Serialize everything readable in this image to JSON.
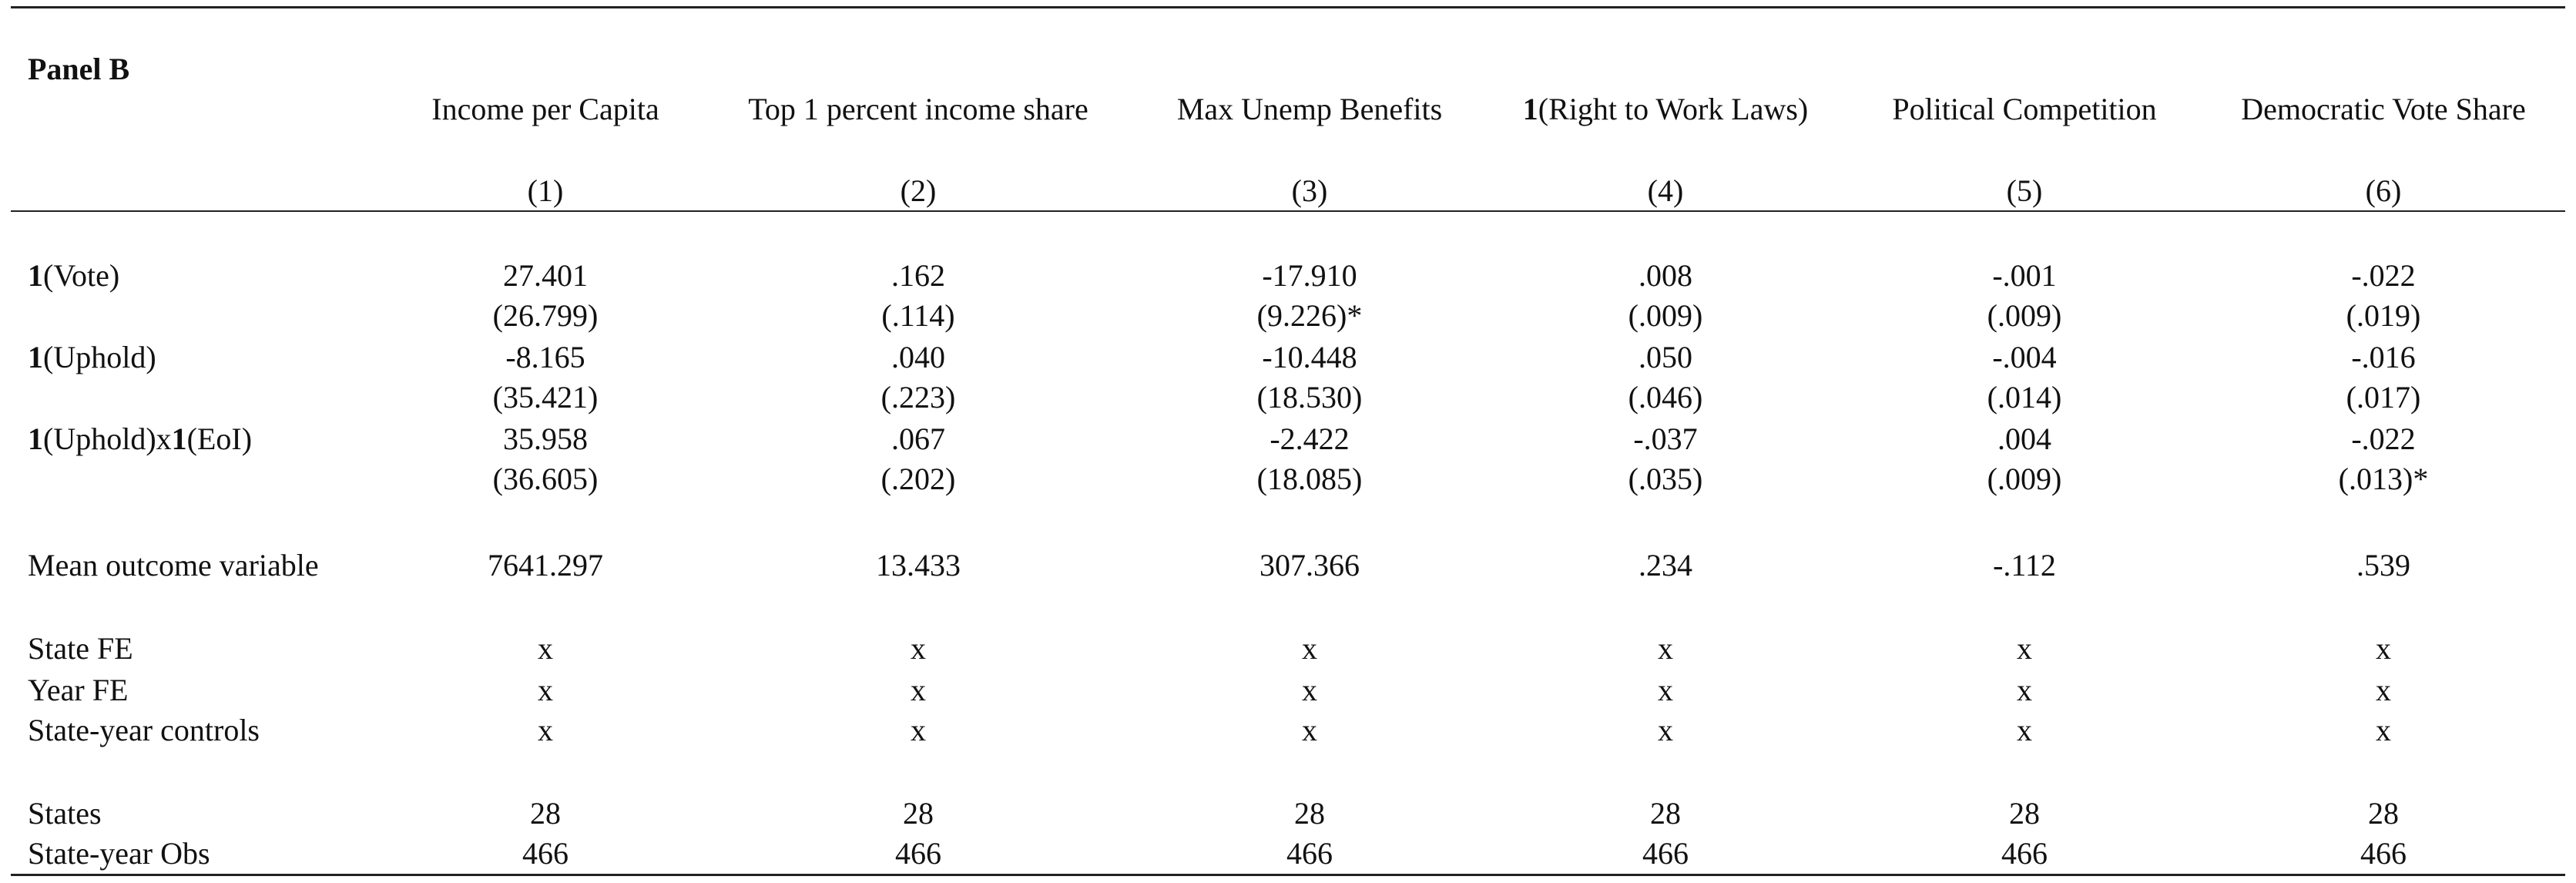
{
  "panel_title": "Panel B",
  "columns": [
    {
      "label": "Income per Capita",
      "num": "(1)"
    },
    {
      "label": "Top 1 percent income share",
      "num": "(2)"
    },
    {
      "label": "Max Unemp Benefits",
      "num": "(3)"
    },
    {
      "label_bold": "1",
      "label": "(Right to Work Laws)",
      "num": "(4)"
    },
    {
      "label": "Political Competition",
      "num": "(5)"
    },
    {
      "label": "Democratic Vote Share",
      "num": "(6)"
    }
  ],
  "rows": [
    {
      "label_parts": [
        {
          "b": "1"
        },
        {
          "t": "(Vote)"
        }
      ],
      "cells": [
        "27.401",
        ".162",
        "-17.910",
        ".008",
        "-.001",
        "-.022"
      ]
    },
    {
      "label_parts": [],
      "cells": [
        "(26.799)",
        "(.114)",
        "(9.226)*",
        "(.009)",
        "(.009)",
        "(.019)"
      ]
    },
    {
      "label_parts": [
        {
          "b": "1"
        },
        {
          "t": "(Uphold)"
        }
      ],
      "cells": [
        "-8.165",
        ".040",
        "-10.448",
        ".050",
        "-.004",
        "-.016"
      ]
    },
    {
      "label_parts": [],
      "cells": [
        "(35.421)",
        "(.223)",
        "(18.530)",
        "(.046)",
        "(.014)",
        "(.017)"
      ]
    },
    {
      "label_parts": [
        {
          "b": "1"
        },
        {
          "t": "(Uphold)x"
        },
        {
          "b": "1"
        },
        {
          "t": "(EoI)"
        }
      ],
      "cells": [
        "35.958",
        ".067",
        "-2.422",
        "-.037",
        ".004",
        "-.022"
      ]
    },
    {
      "label_parts": [],
      "cells": [
        "(36.605)",
        "(.202)",
        "(18.085)",
        "(.035)",
        "(.009)",
        "(.013)*"
      ]
    },
    {
      "label_parts": [
        {
          "t": "Mean outcome variable"
        }
      ],
      "cells": [
        "7641.297",
        "13.433",
        "307.366",
        ".234",
        "-.112",
        ".539"
      ]
    },
    {
      "label_parts": [
        {
          "t": "State FE"
        }
      ],
      "cells": [
        "x",
        "x",
        "x",
        "x",
        "x",
        "x"
      ]
    },
    {
      "label_parts": [
        {
          "t": "Year FE"
        }
      ],
      "cells": [
        "x",
        "x",
        "x",
        "x",
        "x",
        "x"
      ]
    },
    {
      "label_parts": [
        {
          "t": "State-year controls"
        }
      ],
      "cells": [
        "x",
        "x",
        "x",
        "x",
        "x",
        "x"
      ]
    },
    {
      "label_parts": [
        {
          "t": "States"
        }
      ],
      "cells": [
        "28",
        "28",
        "28",
        "28",
        "28",
        "28"
      ]
    },
    {
      "label_parts": [
        {
          "t": "State-year Obs"
        }
      ],
      "cells": [
        "466",
        "466",
        "466",
        "466",
        "466",
        "466"
      ]
    }
  ]
}
